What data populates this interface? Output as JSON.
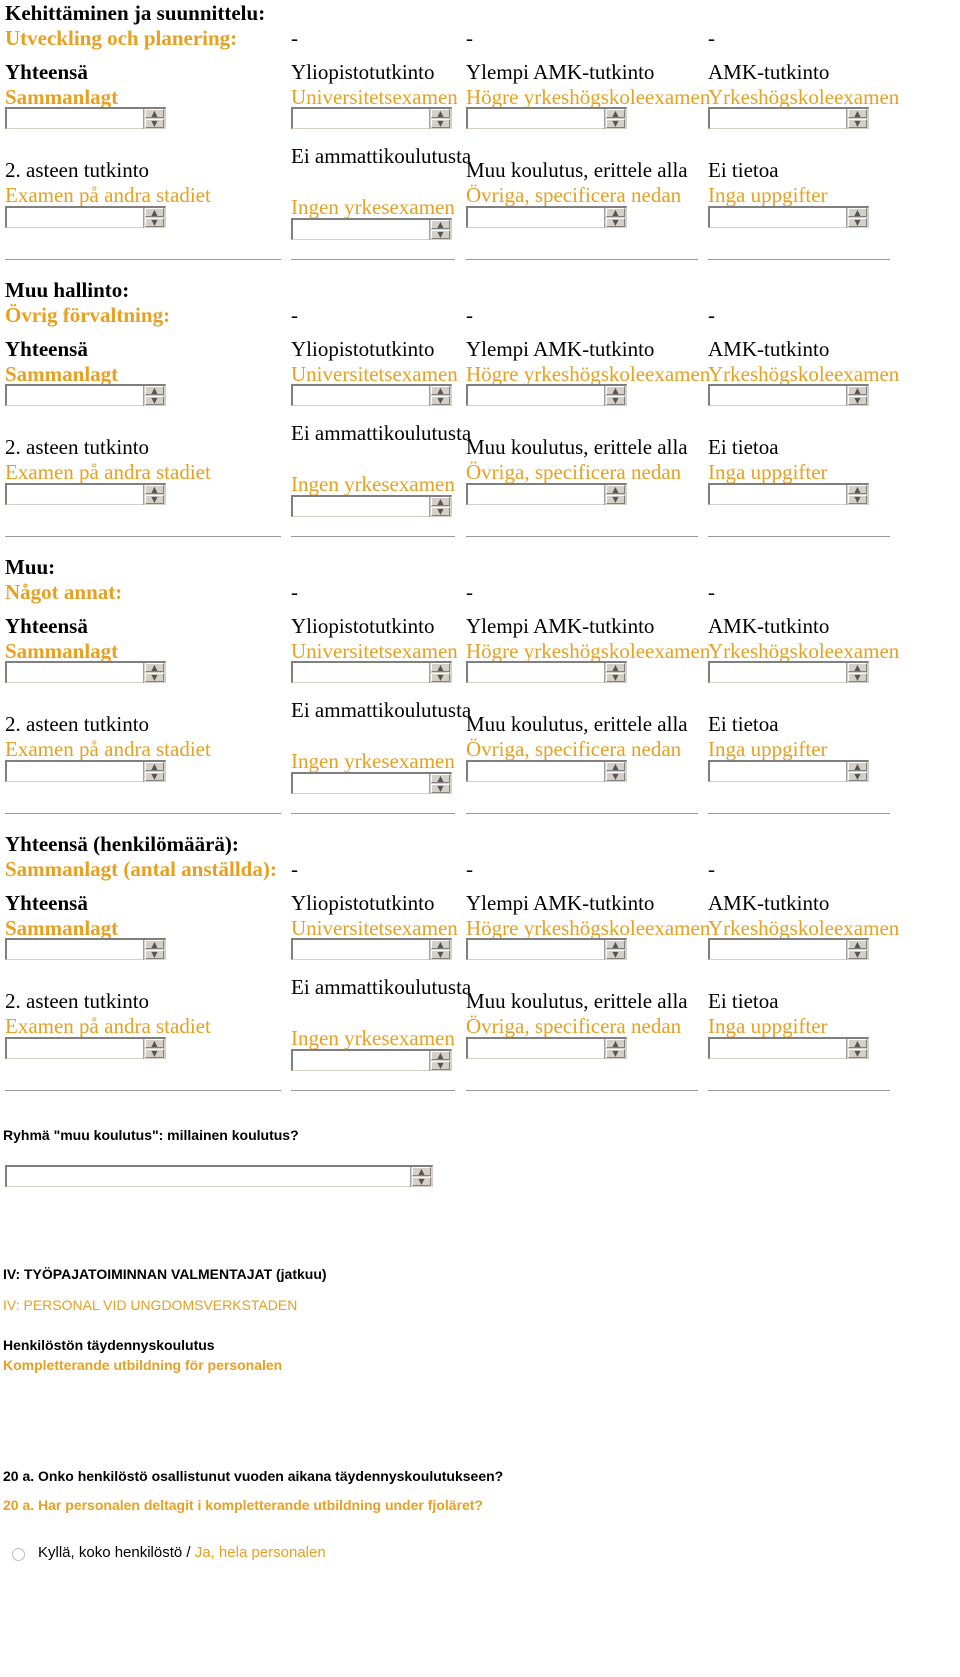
{
  "col_headers": {
    "c1": {
      "fi": "Yhteensä",
      "sv": "Sammanlagt"
    },
    "c2": {
      "fi": "Yliopistotutkinto",
      "sv": "Universitetsexamen"
    },
    "c3": {
      "fi": "Ylempi AMK-tutkinto",
      "sv": "Högre yrkeshögskoleexamen"
    },
    "c4": {
      "fi": "AMK-tutkinto",
      "sv": "Yrkeshögskoleexamen"
    },
    "c5": {
      "fi": "2. asteen tutkinto",
      "sv": "Examen på andra stadiet"
    },
    "c6": {
      "fi": "Ei ammattikoulutusta",
      "sv": "Ingen yrkesexamen"
    },
    "c7": {
      "fi": "Muu koulutus, erittele alla",
      "sv": "Övriga, specificera nedan"
    },
    "c8": {
      "fi": "Ei tietoa",
      "sv": "Inga uppgifter"
    }
  },
  "dash": "-",
  "sections": [
    {
      "fi": "Kehittäminen ja suunnittelu:",
      "sv": "Utveckling och planering:"
    },
    {
      "fi": "Muu hallinto:",
      "sv": "Övrig förvaltning:"
    },
    {
      "fi": "Muu:",
      "sv": "Något annat:"
    },
    {
      "fi": "Yhteensä (henkilömäärä):",
      "sv": "Sammanlagt (antal anställda):"
    }
  ],
  "question_other": {
    "label": "Ryhmä \"muu koulutus\": millainen koulutus?",
    "value": ""
  },
  "part_title": {
    "fi": "IV: TYÖPAJATOIMINNAN VALMENTAJAT (jatkuu)",
    "sv": "IV: PERSONAL VID UNGDOMSVERKSTADEN"
  },
  "subsection": {
    "fi": "Henkilöstön täydennyskoulutus",
    "sv": "Kompletterande utbildning för personalen"
  },
  "question_20a": {
    "fi": "20 a. Onko henkilöstö osallistunut vuoden aikana täydennyskoulutukseen?",
    "sv": "20 a. Har personalen deltagit i kompletterande utbildning under fjoläret?"
  },
  "option_1": {
    "fi": "Kyllä, koko henkilöstö /",
    "sv": "Ja, hela personalen"
  },
  "spin_up": "▲",
  "spin_down": "▼"
}
